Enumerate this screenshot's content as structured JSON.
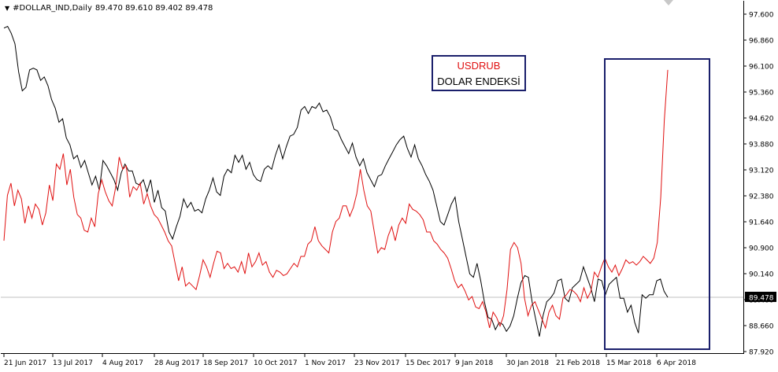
{
  "header": {
    "symbol": "#DOLLAR_IND,Daily",
    "ohlc": "89.470 89.610 89.402 89.478"
  },
  "legend": {
    "red_label": "USDRUB",
    "black_label": "DOLAR ENDEKSİ"
  },
  "colors": {
    "usdrub": "#e01010",
    "dollar_index": "#000000",
    "highlight_box": "#1a1f6b",
    "price_line": "#c0c0c0"
  },
  "chart_data": {
    "type": "line",
    "title": "",
    "xlabel": "",
    "ylabel": "",
    "ylim": [
      87.92,
      97.6
    ],
    "y_ticks": [
      "97.600",
      "96.860",
      "96.100",
      "95.360",
      "94.620",
      "93.880",
      "93.120",
      "92.380",
      "91.640",
      "90.900",
      "90.140",
      "89.400",
      "88.660",
      "87.920"
    ],
    "x_ticks": [
      "21 Jun 2017",
      "13 Jul 2017",
      "4 Aug 2017",
      "28 Aug 2017",
      "18 Sep 2017",
      "10 Oct 2017",
      "1 Nov 2017",
      "23 Nov 2017",
      "15 Dec 2017",
      "9 Jan 2018",
      "30 Jan 2018",
      "21 Feb 2018",
      "15 Mar 2018",
      "6 Apr 2018"
    ],
    "current_price": "89.478",
    "current_price_value": 89.478,
    "series": [
      {
        "color": "#000000",
        "values": [
          97.2,
          97.25,
          97.05,
          96.75,
          95.95,
          95.4,
          95.5,
          96.0,
          96.05,
          96.0,
          95.7,
          95.8,
          95.55,
          95.15,
          94.9,
          94.5,
          94.6,
          94.05,
          93.85,
          93.45,
          93.55,
          93.2,
          93.4,
          93.05,
          92.7,
          92.95,
          92.55,
          93.4,
          93.25,
          93.05,
          92.85,
          92.55,
          93.05,
          93.3,
          93.1,
          93.1,
          92.75,
          92.7,
          92.85,
          92.5,
          92.85,
          92.2,
          92.55,
          92.05,
          91.95,
          91.35,
          91.15,
          91.5,
          91.8,
          92.3,
          92.05,
          92.2,
          91.95,
          92.0,
          91.9,
          92.3,
          92.55,
          92.9,
          92.5,
          92.4,
          92.95,
          93.15,
          93.05,
          93.55,
          93.35,
          93.55,
          93.15,
          93.35,
          93.0,
          92.85,
          92.8,
          93.15,
          93.25,
          93.15,
          93.55,
          93.85,
          93.45,
          93.8,
          94.1,
          94.15,
          94.35,
          94.85,
          94.95,
          94.75,
          94.95,
          94.9,
          95.05,
          94.8,
          94.85,
          94.65,
          94.3,
          94.25,
          94.0,
          93.8,
          93.6,
          93.9,
          93.5,
          93.25,
          93.45,
          93.05,
          92.85,
          92.65,
          92.95,
          93.0,
          93.25,
          93.45,
          93.65,
          93.85,
          94.0,
          94.1,
          93.75,
          93.5,
          93.85,
          93.45,
          93.25,
          93.0,
          92.8,
          92.55,
          92.1,
          91.65,
          91.55,
          91.85,
          92.15,
          92.35,
          91.65,
          91.15,
          90.65,
          90.15,
          90.05,
          90.45,
          89.95,
          89.35,
          88.9,
          88.85,
          88.55,
          88.75,
          88.7,
          88.5,
          88.65,
          88.95,
          89.45,
          89.9,
          90.1,
          90.05,
          89.35,
          88.85,
          88.35,
          88.95,
          89.35,
          89.45,
          89.6,
          89.95,
          90.0,
          89.45,
          89.35,
          89.75,
          89.85,
          89.95,
          90.35,
          90.05,
          89.75,
          89.35,
          90.0,
          89.95,
          89.55,
          89.85,
          89.95,
          90.05,
          89.45,
          89.45,
          89.05,
          89.25,
          88.75,
          88.45,
          89.55,
          89.45,
          89.55,
          89.55,
          89.95,
          90.0,
          89.65,
          89.478
        ]
      },
      {
        "color": "#e01010",
        "values": [
          91.1,
          92.4,
          92.75,
          92.1,
          92.55,
          92.3,
          91.6,
          92.1,
          91.75,
          92.15,
          92.0,
          91.55,
          91.9,
          92.7,
          92.25,
          93.3,
          93.15,
          93.6,
          92.7,
          93.15,
          92.35,
          91.85,
          91.75,
          91.4,
          91.35,
          91.75,
          91.5,
          92.45,
          92.85,
          92.5,
          92.25,
          92.1,
          92.65,
          93.5,
          93.15,
          93.25,
          92.35,
          92.65,
          92.55,
          92.75,
          92.15,
          92.45,
          92.1,
          91.85,
          91.75,
          91.55,
          91.35,
          91.1,
          90.95,
          90.45,
          89.95,
          90.35,
          89.8,
          89.9,
          89.8,
          89.7,
          90.1,
          90.55,
          90.35,
          90.05,
          90.45,
          90.8,
          90.75,
          90.3,
          90.45,
          90.3,
          90.35,
          90.2,
          90.5,
          90.15,
          90.75,
          90.35,
          90.5,
          90.75,
          90.4,
          90.5,
          90.2,
          90.05,
          90.25,
          90.2,
          90.1,
          90.15,
          90.3,
          90.45,
          90.35,
          90.65,
          90.65,
          91.0,
          91.1,
          91.5,
          91.1,
          90.95,
          90.85,
          90.75,
          91.35,
          91.65,
          91.75,
          92.1,
          92.1,
          91.8,
          92.05,
          92.45,
          93.15,
          92.55,
          92.1,
          91.95,
          91.35,
          90.75,
          90.9,
          90.85,
          91.25,
          91.5,
          91.1,
          91.55,
          91.75,
          91.6,
          92.15,
          92.0,
          91.95,
          91.85,
          91.7,
          91.35,
          91.35,
          91.1,
          91.0,
          90.85,
          90.75,
          90.6,
          90.3,
          89.95,
          89.75,
          89.85,
          89.65,
          89.4,
          89.5,
          89.2,
          89.15,
          89.35,
          89.05,
          88.6,
          89.05,
          88.9,
          88.65,
          88.95,
          89.7,
          90.85,
          91.05,
          90.9,
          90.45,
          89.45,
          88.95,
          89.25,
          89.35,
          89.1,
          88.85,
          88.6,
          89.05,
          89.25,
          88.95,
          88.85,
          89.45,
          89.55,
          89.7,
          89.65,
          89.55,
          89.35,
          89.75,
          89.45,
          89.65,
          90.2,
          90.05,
          90.35,
          90.6,
          90.35,
          90.2,
          90.4,
          90.1,
          90.3,
          90.55,
          90.45,
          90.5,
          90.4,
          90.5,
          90.65,
          90.55,
          90.45,
          90.6,
          91.05,
          92.35,
          94.55,
          96.0
        ]
      }
    ]
  }
}
